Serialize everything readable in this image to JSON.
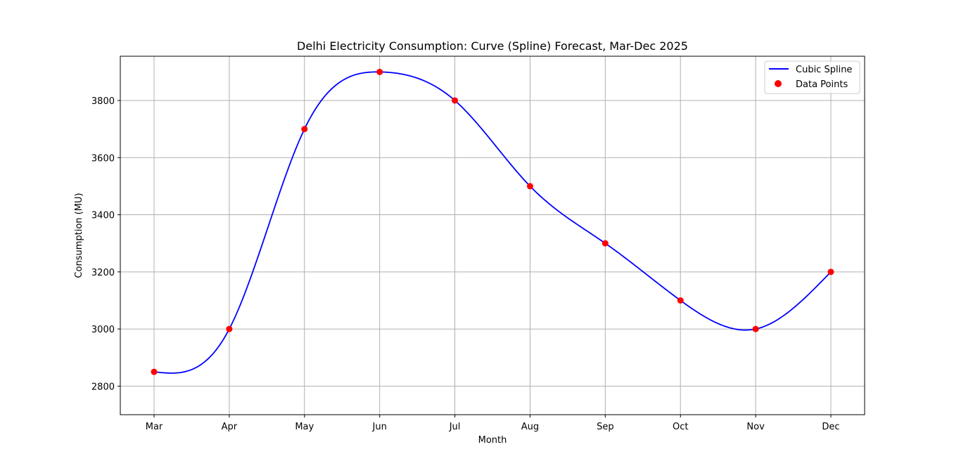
{
  "chart_data": {
    "type": "line",
    "title": "Delhi Electricity Consumption: Curve (Spline) Forecast, Mar-Dec 2025",
    "xlabel": "Month",
    "ylabel": "Consumption (MU)",
    "categories": [
      "Mar",
      "Apr",
      "May",
      "Jun",
      "Jul",
      "Aug",
      "Sep",
      "Oct",
      "Nov",
      "Dec"
    ],
    "yticks": [
      2800,
      3000,
      3200,
      3400,
      3600,
      3800
    ],
    "ylim": [
      2700,
      3955
    ],
    "grid": true,
    "legend_position": "top-right",
    "series": [
      {
        "name": "Cubic Spline",
        "kind": "line",
        "color": "#0000ff",
        "values": [
          2850,
          3000,
          3700,
          3900,
          3800,
          3500,
          3300,
          3100,
          3000,
          3200
        ]
      },
      {
        "name": "Data Points",
        "kind": "scatter",
        "color": "#ff0000",
        "values": [
          2850,
          3000,
          3700,
          3900,
          3800,
          3500,
          3300,
          3100,
          3000,
          3200
        ]
      }
    ]
  }
}
